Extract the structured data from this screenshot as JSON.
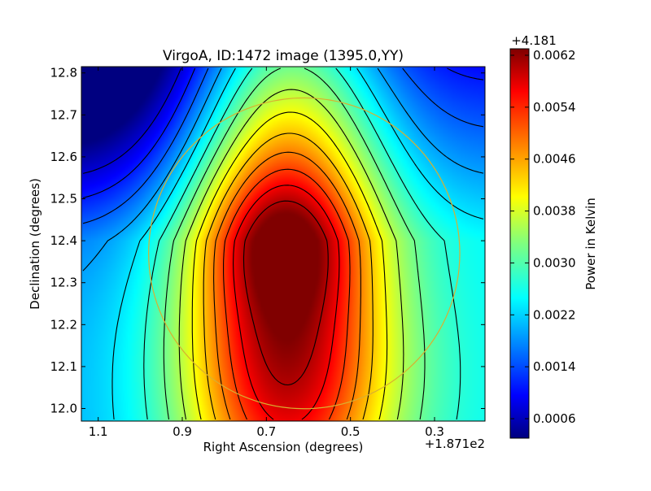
{
  "chart_data": {
    "type": "heatmap",
    "title": "VirgoA, ID:1472 image (1395.0,YY)",
    "xlabel": "Right Ascension (degrees)",
    "ylabel": "Declination (degrees)",
    "x_offset_label": "+1.871e2",
    "x_ticks": [
      "1.1",
      "0.9",
      "0.7",
      "0.5",
      "0.3"
    ],
    "x_tick_values": [
      1.1,
      0.9,
      0.7,
      0.5,
      0.3
    ],
    "xlim": [
      1.14,
      0.18
    ],
    "x_inverted": true,
    "y_ticks": [
      "12.0",
      "12.1",
      "12.2",
      "12.3",
      "12.4",
      "12.5",
      "12.6",
      "12.7",
      "12.8"
    ],
    "y_tick_values": [
      12.0,
      12.1,
      12.2,
      12.3,
      12.4,
      12.5,
      12.6,
      12.7,
      12.8
    ],
    "ylim": [
      11.97,
      12.815
    ],
    "colorbar": {
      "label": "Power in Kelvin",
      "offset_label": "+4.181",
      "ticks": [
        "0.0006",
        "0.0014",
        "0.0022",
        "0.0030",
        "0.0038",
        "0.0046",
        "0.0054",
        "0.0062"
      ],
      "tick_values": [
        0.0006,
        0.0014,
        0.0022,
        0.003,
        0.0038,
        0.0046,
        0.0054,
        0.0062
      ],
      "range": [
        0.0003,
        0.0063
      ],
      "colormap": "jet"
    },
    "peak": {
      "ra": 0.66,
      "dec": 12.4,
      "value": 0.0062
    },
    "circle": {
      "center_ra": 0.61,
      "center_dec": 12.37,
      "radius_deg": 0.37,
      "color": "#d8b030"
    },
    "contour_color": "#000000",
    "grid": false
  }
}
